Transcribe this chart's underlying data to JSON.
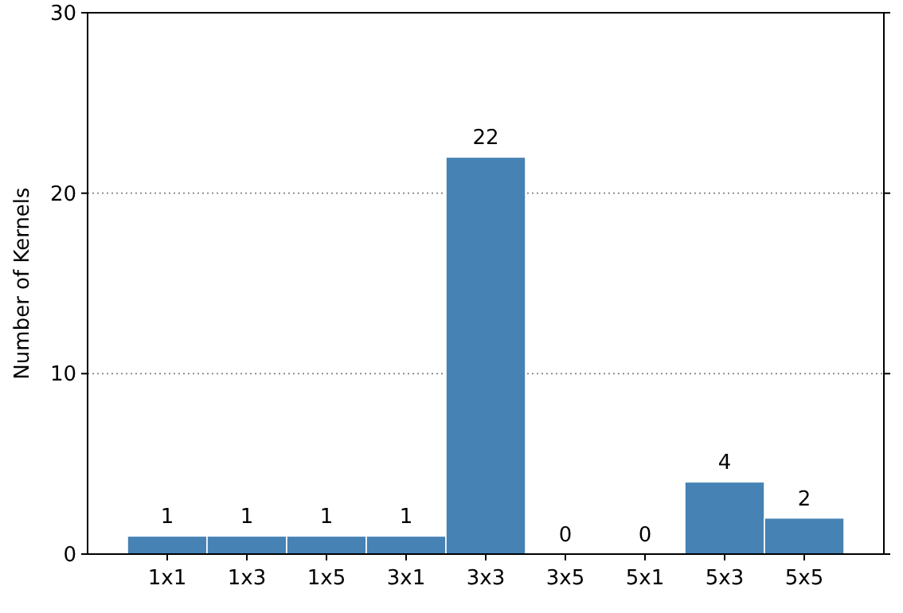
{
  "chart_data": {
    "type": "bar",
    "ylabel": "Number of Kernels",
    "categories": [
      "1x1",
      "1x3",
      "1x5",
      "3x1",
      "3x3",
      "3x5",
      "5x1",
      "5x3",
      "5x5"
    ],
    "values": [
      1,
      1,
      1,
      1,
      22,
      0,
      0,
      4,
      2
    ],
    "color": "#4682b4",
    "ylim": [
      0,
      30
    ],
    "yticks": [
      0,
      10,
      20,
      30
    ],
    "grid": "y",
    "data_labels": true
  }
}
